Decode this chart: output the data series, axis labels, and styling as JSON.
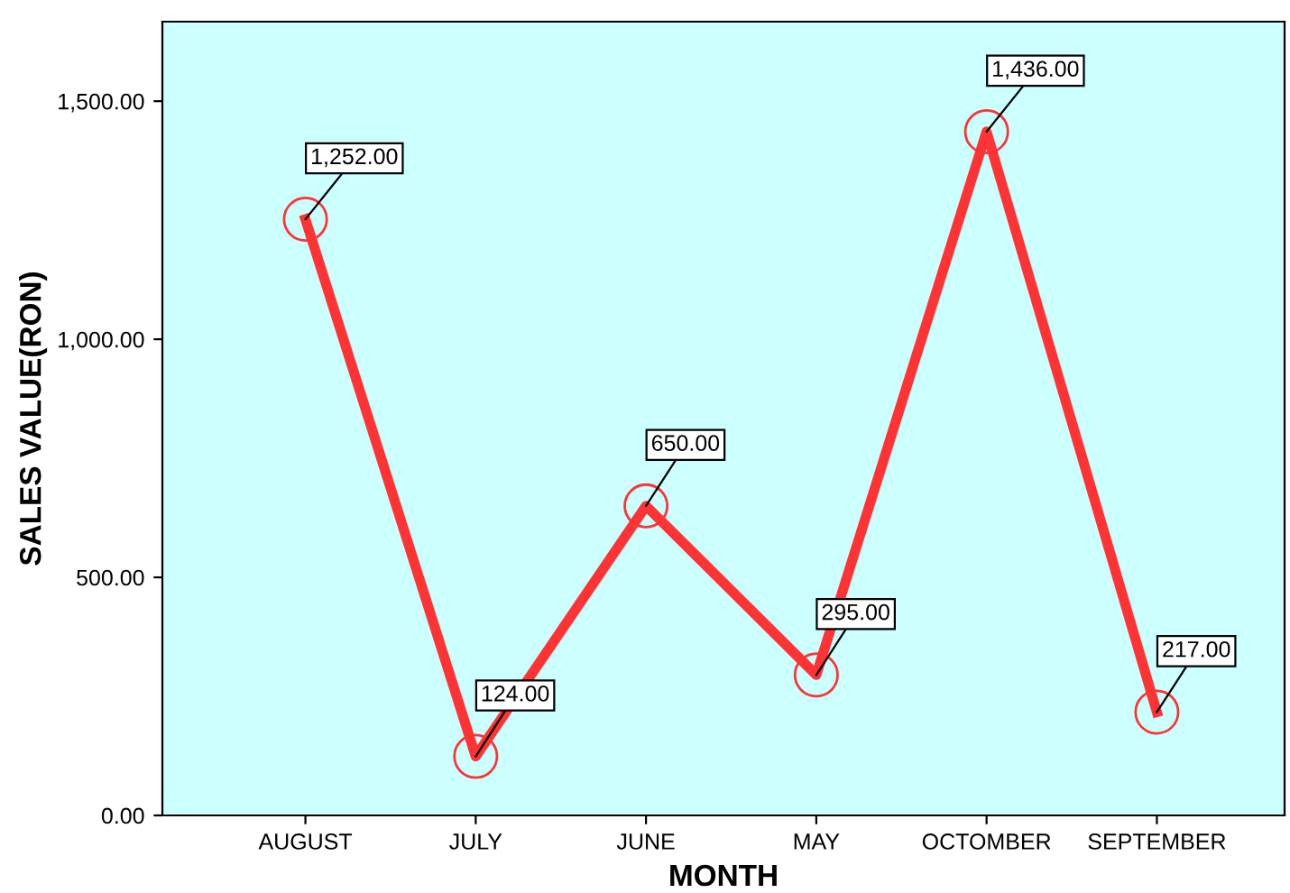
{
  "chart_data": {
    "type": "line",
    "xlabel": "MONTH",
    "ylabel": "SALES VALUE(RON)",
    "categories": [
      "AUGUST",
      "JULY",
      "JUNE",
      "MAY",
      "OCTOMBER",
      "SEPTEMBER"
    ],
    "series": [
      {
        "color": "#ff3333",
        "values": [
          1252,
          124,
          650,
          295,
          1436,
          217
        ],
        "value_labels": [
          "1,252.00",
          "124.00",
          "650.00",
          "295.00",
          "1,436.00",
          "217.00"
        ]
      }
    ],
    "ylim": [
      0,
      1667
    ],
    "yticks": [
      {
        "value": 0,
        "label": "0.00"
      },
      {
        "value": 500,
        "label": "500.00"
      },
      {
        "value": 1000,
        "label": "1,000.00"
      },
      {
        "value": 1500,
        "label": "1,500.00"
      }
    ],
    "grid": false,
    "legend": false,
    "marker": "circle",
    "line_style": "solid"
  }
}
